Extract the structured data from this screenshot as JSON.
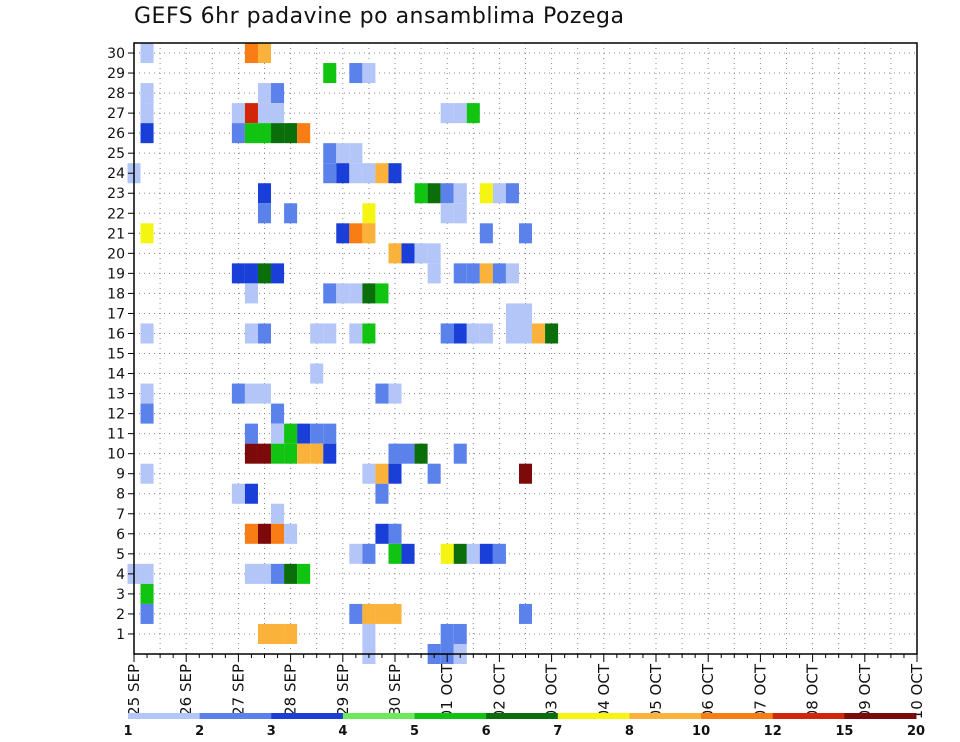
{
  "title": "GEFS 6hr padavine po ansamblima Pozega",
  "chart_data": {
    "type": "heatmap",
    "title": "GEFS 6hr padavine po ansamblima Pozega",
    "xlabel": "",
    "ylabel": "",
    "x_tick_labels": [
      "25 SEP",
      "26 SEP",
      "27 SEP",
      "28 SEP",
      "29 SEP",
      "30 SEP",
      "01 OCT",
      "02 OCT",
      "03 OCT",
      "04 OCT",
      "05 OCT",
      "06 OCT",
      "07 OCT",
      "08 OCT",
      "09 OCT",
      "10 OCT"
    ],
    "y_ticks": [
      1,
      2,
      3,
      4,
      5,
      6,
      7,
      8,
      9,
      10,
      11,
      12,
      13,
      14,
      15,
      16,
      17,
      18,
      19,
      20,
      21,
      22,
      23,
      24,
      25,
      26,
      27,
      28,
      29,
      30
    ],
    "xlim": [
      0,
      60
    ],
    "ylim": [
      0,
      30.5
    ],
    "grid": true,
    "colorbar": {
      "labels": [
        "1",
        "2",
        "3",
        "4",
        "5",
        "6",
        "7",
        "8",
        "10",
        "12",
        "15",
        "20"
      ],
      "colors": [
        "#b3c6f7",
        "#5b82ea",
        "#1a3fd9",
        "#6cea5a",
        "#12c412",
        "#0a6e0a",
        "#f5f514",
        "#fbb23a",
        "#f77d14",
        "#d2260a",
        "#7d0a0a"
      ]
    },
    "cells": [
      [
        1,
        30,
        1
      ],
      [
        9,
        30,
        9
      ],
      [
        10,
        30,
        8
      ],
      [
        15,
        29,
        5
      ],
      [
        17,
        29,
        2
      ],
      [
        18,
        29,
        1
      ],
      [
        1,
        28,
        1
      ],
      [
        10,
        28,
        1
      ],
      [
        11,
        28,
        2
      ],
      [
        1,
        27,
        1
      ],
      [
        8,
        27,
        1
      ],
      [
        9,
        27,
        10
      ],
      [
        10,
        27,
        1
      ],
      [
        11,
        27,
        1
      ],
      [
        24,
        27,
        1
      ],
      [
        25,
        27,
        1
      ],
      [
        26,
        27,
        5
      ],
      [
        1,
        26,
        3
      ],
      [
        8,
        26,
        2
      ],
      [
        9,
        26,
        5
      ],
      [
        10,
        26,
        5
      ],
      [
        11,
        26,
        6
      ],
      [
        12,
        26,
        6
      ],
      [
        13,
        26,
        9
      ],
      [
        15,
        25,
        2
      ],
      [
        16,
        25,
        1
      ],
      [
        17,
        25,
        1
      ],
      [
        0,
        24,
        1
      ],
      [
        15,
        24,
        2
      ],
      [
        16,
        24,
        3
      ],
      [
        17,
        24,
        1
      ],
      [
        18,
        24,
        1
      ],
      [
        19,
        24,
        8
      ],
      [
        20,
        24,
        3
      ],
      [
        10,
        23,
        3
      ],
      [
        22,
        23,
        5
      ],
      [
        23,
        23,
        6
      ],
      [
        24,
        23,
        2
      ],
      [
        25,
        23,
        1
      ],
      [
        27,
        23,
        7
      ],
      [
        28,
        23,
        1
      ],
      [
        29,
        23,
        2
      ],
      [
        10,
        22,
        2
      ],
      [
        12,
        22,
        2
      ],
      [
        18,
        22,
        7
      ],
      [
        24,
        22,
        1
      ],
      [
        25,
        22,
        1
      ],
      [
        1,
        21,
        7
      ],
      [
        16,
        21,
        3
      ],
      [
        17,
        21,
        9
      ],
      [
        18,
        21,
        8
      ],
      [
        27,
        21,
        2
      ],
      [
        30,
        21,
        2
      ],
      [
        20,
        20,
        8
      ],
      [
        21,
        20,
        3
      ],
      [
        22,
        20,
        1
      ],
      [
        23,
        20,
        1
      ],
      [
        8,
        19,
        3
      ],
      [
        9,
        19,
        3
      ],
      [
        10,
        19,
        6
      ],
      [
        11,
        19,
        3
      ],
      [
        23,
        19,
        1
      ],
      [
        25,
        19,
        2
      ],
      [
        26,
        19,
        2
      ],
      [
        27,
        19,
        8
      ],
      [
        28,
        19,
        2
      ],
      [
        29,
        19,
        1
      ],
      [
        9,
        18,
        1
      ],
      [
        15,
        18,
        2
      ],
      [
        16,
        18,
        1
      ],
      [
        17,
        18,
        1
      ],
      [
        18,
        18,
        6
      ],
      [
        19,
        18,
        5
      ],
      [
        29,
        17,
        1
      ],
      [
        30,
        17,
        1
      ],
      [
        1,
        16,
        1
      ],
      [
        9,
        16,
        1
      ],
      [
        10,
        16,
        2
      ],
      [
        14,
        16,
        1
      ],
      [
        15,
        16,
        1
      ],
      [
        17,
        16,
        1
      ],
      [
        18,
        16,
        5
      ],
      [
        24,
        16,
        2
      ],
      [
        25,
        16,
        3
      ],
      [
        26,
        16,
        1
      ],
      [
        27,
        16,
        1
      ],
      [
        29,
        16,
        1
      ],
      [
        30,
        16,
        1
      ],
      [
        31,
        16,
        8
      ],
      [
        32,
        16,
        6
      ],
      [
        14,
        14,
        1
      ],
      [
        1,
        13,
        1
      ],
      [
        8,
        13,
        2
      ],
      [
        9,
        13,
        1
      ],
      [
        10,
        13,
        1
      ],
      [
        19,
        13,
        2
      ],
      [
        20,
        13,
        1
      ],
      [
        1,
        12,
        2
      ],
      [
        11,
        12,
        2
      ],
      [
        9,
        11,
        2
      ],
      [
        11,
        11,
        1
      ],
      [
        12,
        11,
        5
      ],
      [
        13,
        11,
        3
      ],
      [
        14,
        11,
        2
      ],
      [
        15,
        11,
        2
      ],
      [
        9,
        10,
        11
      ],
      [
        10,
        10,
        11
      ],
      [
        11,
        10,
        5
      ],
      [
        12,
        10,
        5
      ],
      [
        13,
        10,
        8
      ],
      [
        14,
        10,
        8
      ],
      [
        15,
        10,
        3
      ],
      [
        20,
        10,
        2
      ],
      [
        21,
        10,
        2
      ],
      [
        22,
        10,
        6
      ],
      [
        25,
        10,
        2
      ],
      [
        1,
        9,
        1
      ],
      [
        18,
        9,
        1
      ],
      [
        19,
        9,
        8
      ],
      [
        20,
        9,
        3
      ],
      [
        23,
        9,
        2
      ],
      [
        30,
        9,
        11
      ],
      [
        8,
        8,
        1
      ],
      [
        9,
        8,
        3
      ],
      [
        19,
        8,
        2
      ],
      [
        11,
        7,
        1
      ],
      [
        9,
        6,
        9
      ],
      [
        10,
        6,
        11
      ],
      [
        11,
        6,
        9
      ],
      [
        12,
        6,
        1
      ],
      [
        19,
        6,
        3
      ],
      [
        20,
        6,
        2
      ],
      [
        17,
        5,
        1
      ],
      [
        18,
        5,
        2
      ],
      [
        20,
        5,
        5
      ],
      [
        21,
        5,
        3
      ],
      [
        24,
        5,
        7
      ],
      [
        25,
        5,
        6
      ],
      [
        26,
        5,
        1
      ],
      [
        27,
        5,
        3
      ],
      [
        28,
        5,
        2
      ],
      [
        0,
        4,
        1
      ],
      [
        1,
        4,
        1
      ],
      [
        9,
        4,
        1
      ],
      [
        10,
        4,
        1
      ],
      [
        11,
        4,
        2
      ],
      [
        12,
        4,
        6
      ],
      [
        13,
        4,
        5
      ],
      [
        1,
        3,
        5
      ],
      [
        1,
        2,
        2
      ],
      [
        17,
        2,
        2
      ],
      [
        18,
        2,
        8
      ],
      [
        19,
        2,
        8
      ],
      [
        20,
        2,
        8
      ],
      [
        30,
        2,
        2
      ],
      [
        10,
        1,
        8
      ],
      [
        11,
        1,
        8
      ],
      [
        12,
        1,
        8
      ],
      [
        18,
        1,
        1
      ],
      [
        24,
        1,
        2
      ],
      [
        25,
        1,
        2
      ],
      [
        18,
        0,
        1
      ],
      [
        23,
        0,
        2
      ],
      [
        24,
        0,
        2
      ],
      [
        25,
        0,
        1
      ]
    ],
    "cells_note": "each cell = [time_step_6hr_from_25SEP00, member, color_class_index (1..11 mapping to colorbar intervals)]"
  }
}
